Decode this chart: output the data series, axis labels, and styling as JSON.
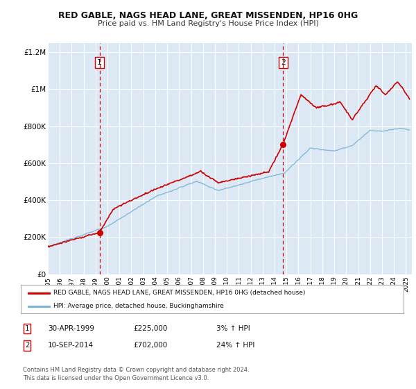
{
  "title": "RED GABLE, NAGS HEAD LANE, GREAT MISSENDEN, HP16 0HG",
  "subtitle": "Price paid vs. HM Land Registry's House Price Index (HPI)",
  "bg_color": "#dce9f5",
  "red_line_color": "#cc0000",
  "blue_line_color": "#7ab3d4",
  "marker1_x": 1999.33,
  "marker1_y": 225000,
  "marker2_x": 2014.71,
  "marker2_y": 702000,
  "vline1_x": 1999.33,
  "vline2_x": 2014.71,
  "ylim": [
    0,
    1250000
  ],
  "xlim_start": 1995,
  "xlim_end": 2025.5,
  "yticks": [
    0,
    200000,
    400000,
    600000,
    800000,
    1000000,
    1200000
  ],
  "ytick_labels": [
    "£0",
    "£200K",
    "£400K",
    "£600K",
    "£800K",
    "£1M",
    "£1.2M"
  ],
  "xtick_years": [
    1995,
    1996,
    1997,
    1998,
    1999,
    2000,
    2001,
    2002,
    2003,
    2004,
    2005,
    2006,
    2007,
    2008,
    2009,
    2010,
    2011,
    2012,
    2013,
    2014,
    2015,
    2016,
    2017,
    2018,
    2019,
    2020,
    2021,
    2022,
    2023,
    2024,
    2025
  ],
  "legend_label_red": "RED GABLE, NAGS HEAD LANE, GREAT MISSENDEN, HP16 0HG (detached house)",
  "legend_label_blue": "HPI: Average price, detached house, Buckinghamshire",
  "table_row1": [
    "1",
    "30-APR-1999",
    "£225,000",
    "3% ↑ HPI"
  ],
  "table_row2": [
    "2",
    "10-SEP-2014",
    "£702,000",
    "24% ↑ HPI"
  ],
  "footnote": "Contains HM Land Registry data © Crown copyright and database right 2024.\nThis data is licensed under the Open Government Licence v3.0."
}
